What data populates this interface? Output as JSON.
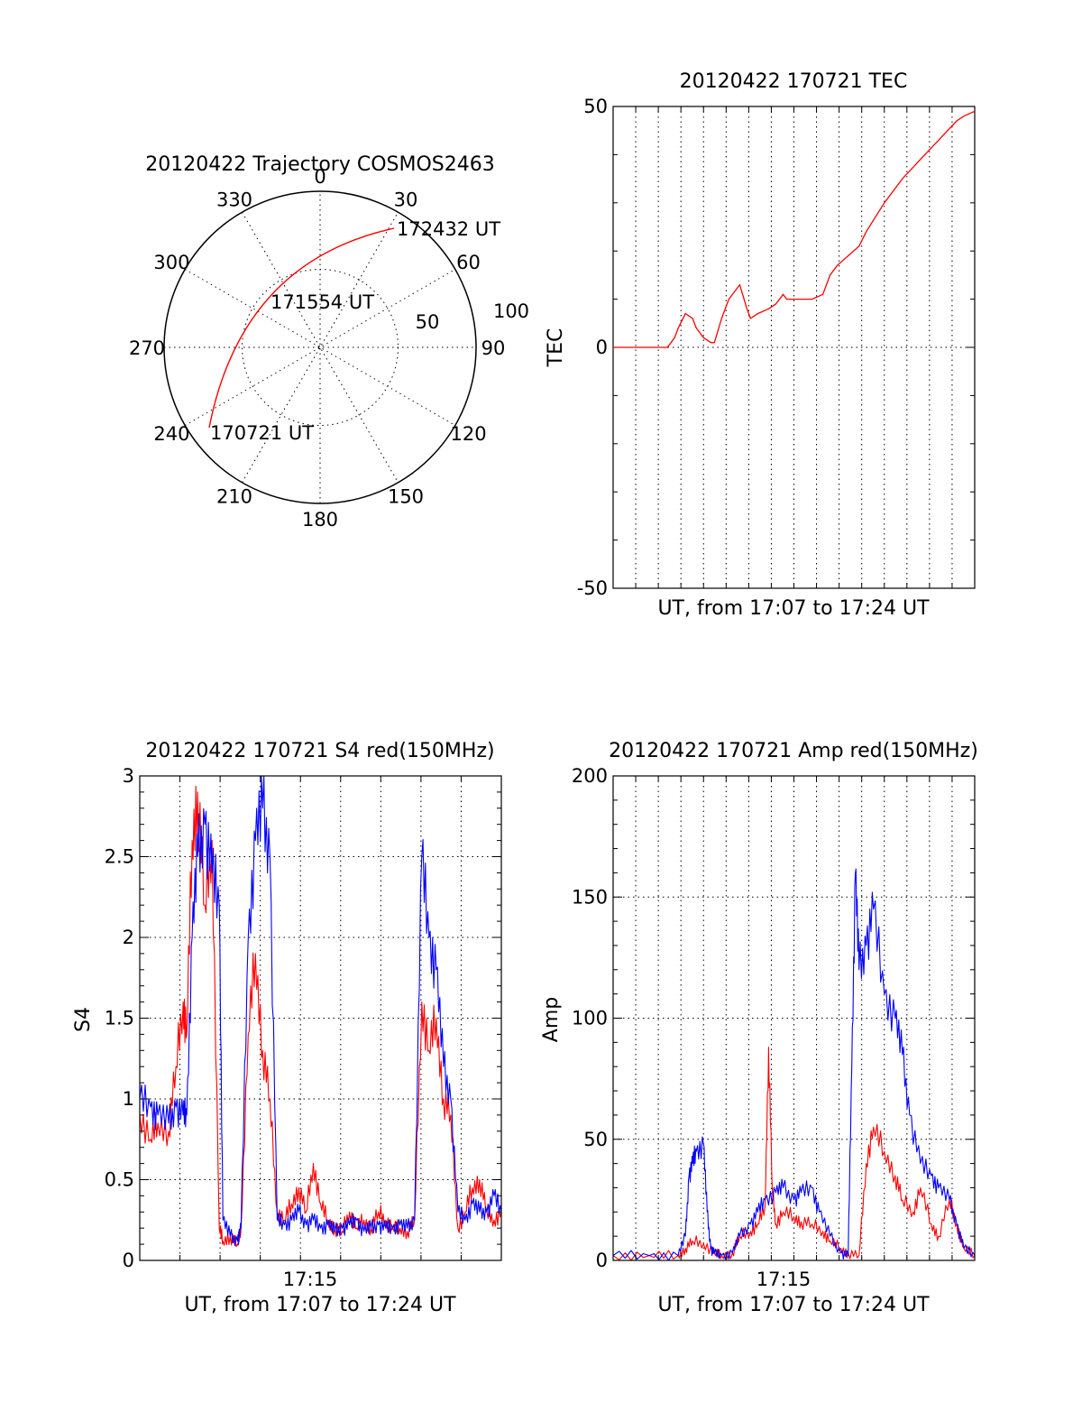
{
  "polar": {
    "title": "20120422 Trajectory COSMOS2463",
    "azimuth_labels": [
      "0",
      "30",
      "60",
      "90",
      "120",
      "150",
      "180",
      "210",
      "240",
      "270",
      "300",
      "330"
    ],
    "radius_labels": [
      "50",
      "100"
    ],
    "radius_values": [
      50,
      100
    ],
    "time_labels": {
      "start": "170721 UT",
      "mid": "171554 UT",
      "end": "172432 UT"
    },
    "trajectory_color": "#ff0000"
  },
  "chart_data": [
    {
      "type": "line",
      "title": "20120422 170721 TEC",
      "xlabel": "UT, from 17:07 to 17:24 UT",
      "ylabel": "TEC",
      "ylim": [
        -50,
        50
      ],
      "yticks": [
        "50",
        "0",
        "-50"
      ],
      "ytick_values": [
        50,
        0,
        -50
      ],
      "grid": true,
      "series": [
        {
          "color": "#ff0000",
          "x": [
            0,
            0.05,
            0.1,
            0.13,
            0.15,
            0.16,
            0.17,
            0.18,
            0.2,
            0.22,
            0.23,
            0.25,
            0.27,
            0.28,
            0.3,
            0.32,
            0.35,
            0.37,
            0.38,
            0.4,
            0.43,
            0.45,
            0.47,
            0.48,
            0.5,
            0.52,
            0.55,
            0.58,
            0.6,
            0.62,
            0.65,
            0.68,
            0.7,
            0.75,
            0.8,
            0.85,
            0.9,
            0.95,
            0.97,
            1.0
          ],
          "y": [
            0,
            0,
            0,
            0,
            0,
            1,
            2,
            4,
            7,
            6,
            4,
            2,
            1,
            1,
            6,
            10,
            13,
            8,
            6,
            7,
            8,
            9,
            11,
            10,
            10,
            10,
            10,
            11,
            15,
            17,
            19,
            21,
            24,
            30,
            35,
            39,
            43,
            47,
            48,
            49
          ]
        }
      ]
    },
    {
      "type": "line",
      "title": "20120422 170721 S4 red(150MHz)",
      "xlabel": "UT, from 17:07 to 17:24 UT",
      "ylabel": "S4",
      "ylim": [
        0,
        3
      ],
      "yticks": [
        "0",
        "0.5",
        "1",
        "1.5",
        "2",
        "2.5",
        "3"
      ],
      "ytick_values": [
        0,
        0.5,
        1,
        1.5,
        2,
        2.5,
        3
      ],
      "xticks": [
        "17:15"
      ],
      "grid": true,
      "series": [
        {
          "color": "#ff0000",
          "x": [
            0,
            0.03,
            0.05,
            0.08,
            0.1,
            0.12,
            0.13,
            0.145,
            0.16,
            0.18,
            0.2,
            0.22,
            0.23,
            0.25,
            0.27,
            0.28,
            0.3,
            0.32,
            0.34,
            0.36,
            0.38,
            0.4,
            0.42,
            0.44,
            0.46,
            0.48,
            0.5,
            0.52,
            0.54,
            0.56,
            0.58,
            0.6,
            0.62,
            0.64,
            0.66,
            0.68,
            0.7,
            0.72,
            0.74,
            0.76,
            0.78,
            0.8,
            0.82,
            0.84,
            0.86,
            0.88,
            0.9,
            0.92,
            0.94,
            0.96,
            0.98,
            1.0
          ],
          "y": [
            0.9,
            0.75,
            0.85,
            0.8,
            1.2,
            1.6,
            1.4,
            2.6,
            2.9,
            2.2,
            2.6,
            0.2,
            0.12,
            0.15,
            0.1,
            0.2,
            1.4,
            1.9,
            1.3,
            1.0,
            0.3,
            0.25,
            0.35,
            0.45,
            0.3,
            0.6,
            0.35,
            0.25,
            0.2,
            0.18,
            0.3,
            0.2,
            0.25,
            0.2,
            0.3,
            0.25,
            0.2,
            0.2,
            0.18,
            0.25,
            1.6,
            1.3,
            1.5,
            1.0,
            0.9,
            0.2,
            0.3,
            0.45,
            0.5,
            0.3,
            0.25,
            0.3
          ]
        },
        {
          "color": "#0000ff",
          "x": [
            0,
            0.03,
            0.05,
            0.08,
            0.1,
            0.12,
            0.13,
            0.145,
            0.16,
            0.18,
            0.2,
            0.22,
            0.23,
            0.25,
            0.27,
            0.28,
            0.3,
            0.32,
            0.34,
            0.36,
            0.38,
            0.4,
            0.42,
            0.44,
            0.46,
            0.48,
            0.5,
            0.52,
            0.54,
            0.56,
            0.58,
            0.6,
            0.62,
            0.64,
            0.66,
            0.68,
            0.7,
            0.72,
            0.74,
            0.76,
            0.78,
            0.8,
            0.82,
            0.84,
            0.86,
            0.88,
            0.9,
            0.92,
            0.94,
            0.96,
            0.98,
            1.0
          ],
          "y": [
            1.0,
            0.95,
            0.9,
            0.85,
            0.95,
            0.9,
            0.9,
            2.0,
            2.5,
            2.7,
            2.4,
            2.2,
            0.25,
            0.15,
            0.12,
            0.2,
            2.0,
            2.6,
            2.8,
            2.5,
            0.25,
            0.22,
            0.25,
            0.3,
            0.22,
            0.25,
            0.2,
            0.22,
            0.18,
            0.2,
            0.22,
            0.25,
            0.18,
            0.2,
            0.22,
            0.2,
            0.2,
            0.22,
            0.2,
            0.25,
            2.5,
            2.0,
            1.8,
            1.2,
            1.0,
            0.3,
            0.25,
            0.35,
            0.3,
            0.3,
            0.4,
            0.3
          ]
        }
      ]
    },
    {
      "type": "line",
      "title": "20120422 170721 Amp red(150MHz)",
      "xlabel": "UT, from 17:07 to 17:24 UT",
      "ylabel": "Amp",
      "ylim": [
        0,
        200
      ],
      "yticks": [
        "0",
        "50",
        "100",
        "150",
        "200"
      ],
      "ytick_values": [
        0,
        50,
        100,
        150,
        200
      ],
      "xticks": [
        "17:15"
      ],
      "grid": true,
      "series": [
        {
          "color": "#ff0000",
          "x": [
            0,
            0.1,
            0.18,
            0.2,
            0.22,
            0.25,
            0.28,
            0.3,
            0.33,
            0.35,
            0.38,
            0.4,
            0.42,
            0.43,
            0.44,
            0.45,
            0.47,
            0.5,
            0.52,
            0.55,
            0.58,
            0.6,
            0.63,
            0.65,
            0.68,
            0.7,
            0.72,
            0.75,
            0.78,
            0.8,
            0.83,
            0.85,
            0.88,
            0.9,
            0.93,
            0.95,
            0.97,
            1.0
          ],
          "y": [
            2,
            2,
            2,
            5,
            8,
            7,
            3,
            2,
            3,
            10,
            12,
            15,
            22,
            88,
            30,
            15,
            20,
            18,
            16,
            15,
            12,
            8,
            5,
            3,
            2,
            40,
            55,
            45,
            35,
            25,
            20,
            30,
            15,
            10,
            25,
            15,
            5,
            2
          ]
        },
        {
          "color": "#0000ff",
          "x": [
            0,
            0.1,
            0.18,
            0.2,
            0.21,
            0.22,
            0.23,
            0.25,
            0.26,
            0.27,
            0.28,
            0.3,
            0.33,
            0.35,
            0.38,
            0.4,
            0.42,
            0.45,
            0.47,
            0.5,
            0.52,
            0.55,
            0.57,
            0.6,
            0.63,
            0.65,
            0.66,
            0.67,
            0.68,
            0.7,
            0.72,
            0.75,
            0.78,
            0.8,
            0.82,
            0.85,
            0.88,
            0.9,
            0.93,
            0.95,
            0.97,
            1.0
          ],
          "y": [
            2,
            2,
            2,
            10,
            35,
            40,
            45,
            48,
            20,
            5,
            3,
            2,
            3,
            10,
            15,
            20,
            25,
            28,
            30,
            25,
            28,
            30,
            20,
            10,
            3,
            2,
            80,
            160,
            120,
            130,
            145,
            110,
            100,
            85,
            60,
            40,
            35,
            30,
            25,
            15,
            5,
            2
          ]
        }
      ]
    }
  ]
}
